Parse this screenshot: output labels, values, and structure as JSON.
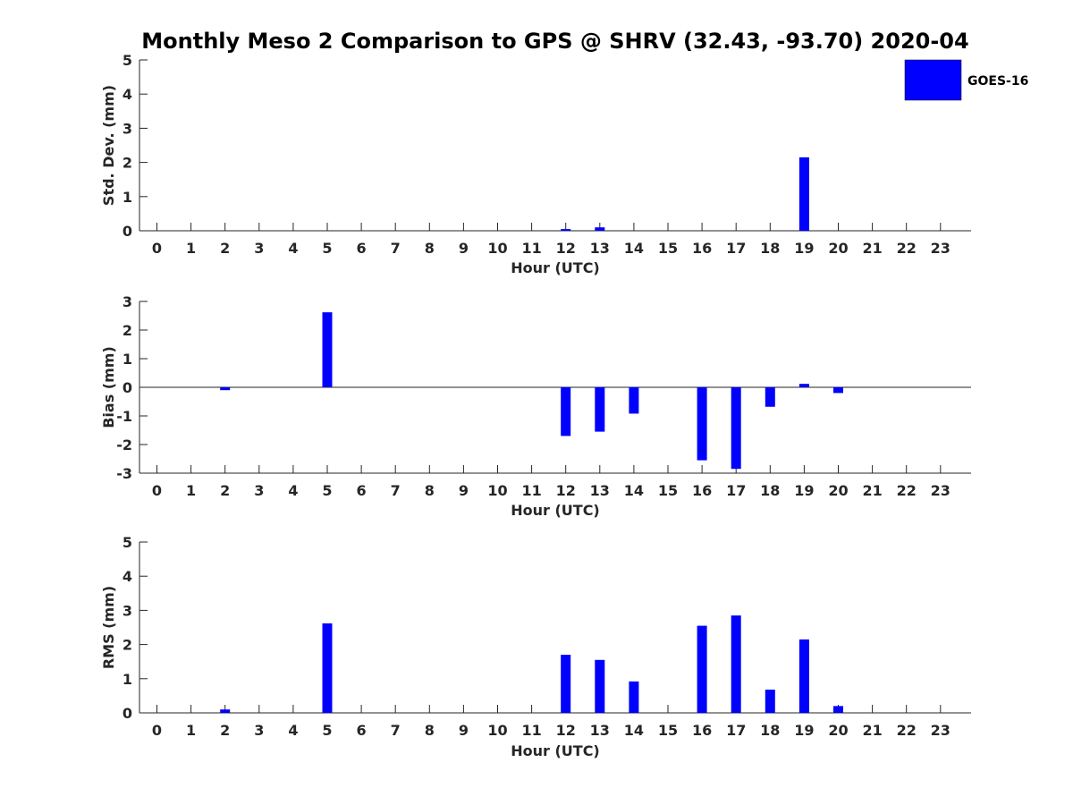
{
  "title": "Monthly Meso 2 Comparison to GPS @ SHRV (32.43, -93.70) 2020-04",
  "legend": {
    "label": "GOES-16",
    "color": "#0000ff",
    "placement": "top-right"
  },
  "chart_data": [
    {
      "type": "bar",
      "xlabel": "Hour (UTC)",
      "ylabel": "Std. Dev. (mm)",
      "categories": [
        "0",
        "1",
        "2",
        "3",
        "4",
        "5",
        "6",
        "7",
        "8",
        "9",
        "10",
        "11",
        "12",
        "13",
        "14",
        "15",
        "16",
        "17",
        "18",
        "19",
        "20",
        "21",
        "22",
        "23"
      ],
      "yticks": [
        0,
        1,
        2,
        3,
        4,
        5
      ],
      "ylim": [
        0,
        5
      ],
      "grid": false,
      "series": [
        {
          "name": "GOES-16",
          "color": "#0000ff",
          "values": [
            null,
            null,
            null,
            null,
            null,
            null,
            null,
            null,
            null,
            null,
            null,
            null,
            0.05,
            0.1,
            null,
            null,
            null,
            null,
            null,
            2.15,
            null,
            null,
            null,
            null
          ]
        }
      ]
    },
    {
      "type": "bar",
      "xlabel": "Hour (UTC)",
      "ylabel": "Bias (mm)",
      "categories": [
        "0",
        "1",
        "2",
        "3",
        "4",
        "5",
        "6",
        "7",
        "8",
        "9",
        "10",
        "11",
        "12",
        "13",
        "14",
        "15",
        "16",
        "17",
        "18",
        "19",
        "20",
        "21",
        "22",
        "23"
      ],
      "yticks": [
        -3,
        -2,
        -1,
        0,
        1,
        2,
        3
      ],
      "ylim": [
        -3,
        3
      ],
      "grid": false,
      "series": [
        {
          "name": "GOES-16",
          "color": "#0000ff",
          "values": [
            null,
            null,
            -0.1,
            null,
            null,
            2.62,
            null,
            null,
            null,
            null,
            null,
            null,
            -1.7,
            -1.55,
            -0.92,
            null,
            -2.55,
            -2.85,
            -0.68,
            0.12,
            -0.2,
            null,
            null,
            null
          ]
        }
      ]
    },
    {
      "type": "bar",
      "xlabel": "Hour (UTC)",
      "ylabel": "RMS (mm)",
      "categories": [
        "0",
        "1",
        "2",
        "3",
        "4",
        "5",
        "6",
        "7",
        "8",
        "9",
        "10",
        "11",
        "12",
        "13",
        "14",
        "15",
        "16",
        "17",
        "18",
        "19",
        "20",
        "21",
        "22",
        "23"
      ],
      "yticks": [
        0,
        1,
        2,
        3,
        4,
        5
      ],
      "ylim": [
        0,
        5
      ],
      "grid": false,
      "series": [
        {
          "name": "GOES-16",
          "color": "#0000ff",
          "values": [
            null,
            null,
            0.1,
            null,
            null,
            2.62,
            null,
            null,
            null,
            null,
            null,
            null,
            1.7,
            1.55,
            0.92,
            null,
            2.55,
            2.85,
            0.68,
            2.15,
            0.2,
            null,
            null,
            null
          ]
        }
      ]
    }
  ]
}
